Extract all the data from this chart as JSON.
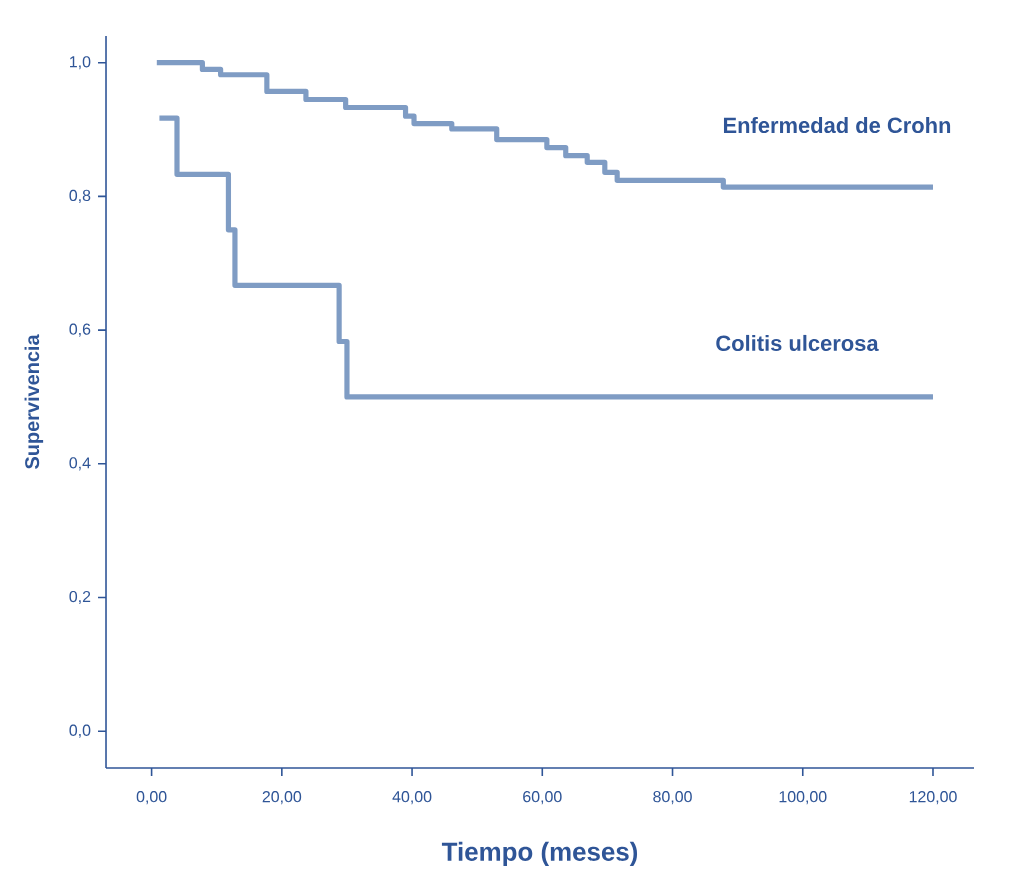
{
  "chart_data": {
    "type": "step",
    "xlabel": "Tiempo (meses)",
    "ylabel": "Supervivencia",
    "xlim": [
      -7,
      126.3
    ],
    "ylim": [
      -0.055,
      1.04
    ],
    "xticks": [
      {
        "value": 0,
        "label": "0,00"
      },
      {
        "value": 20,
        "label": "20,00"
      },
      {
        "value": 40,
        "label": "40,00"
      },
      {
        "value": 60,
        "label": "60,00"
      },
      {
        "value": 80,
        "label": "80,00"
      },
      {
        "value": 100,
        "label": "100,00"
      },
      {
        "value": 120,
        "label": "120,00"
      }
    ],
    "yticks": [
      {
        "value": 0,
        "label": "0,0"
      },
      {
        "value": 0.2,
        "label": "0,2"
      },
      {
        "value": 0.4,
        "label": "0,4"
      },
      {
        "value": 0.6,
        "label": "0,6"
      },
      {
        "value": 0.8,
        "label": "0,8"
      },
      {
        "value": 1.0,
        "label": "1,0"
      }
    ],
    "series": [
      {
        "name": "Enfermedad de Crohn",
        "color": "#7f9cc4",
        "x": [
          0.8,
          7.8,
          10.6,
          17.7,
          23.7,
          29.8,
          39,
          40.3,
          46.1,
          53,
          60.7,
          63.6,
          66.9,
          69.6,
          71.5,
          87.8,
          120
        ],
        "values": [
          1.0,
          0.99,
          0.982,
          0.957,
          0.945,
          0.933,
          0.92,
          0.909,
          0.901,
          0.885,
          0.873,
          0.861,
          0.851,
          0.836,
          0.824,
          0.814,
          0.814
        ]
      },
      {
        "name": "Colitis ulcerosa",
        "color": "#7f9cc4",
        "x": [
          1.2,
          3.9,
          11.8,
          12.8,
          28.8,
          30,
          120
        ],
        "values": [
          0.917,
          0.833,
          0.75,
          0.667,
          0.583,
          0.5,
          0.5
        ]
      }
    ]
  }
}
